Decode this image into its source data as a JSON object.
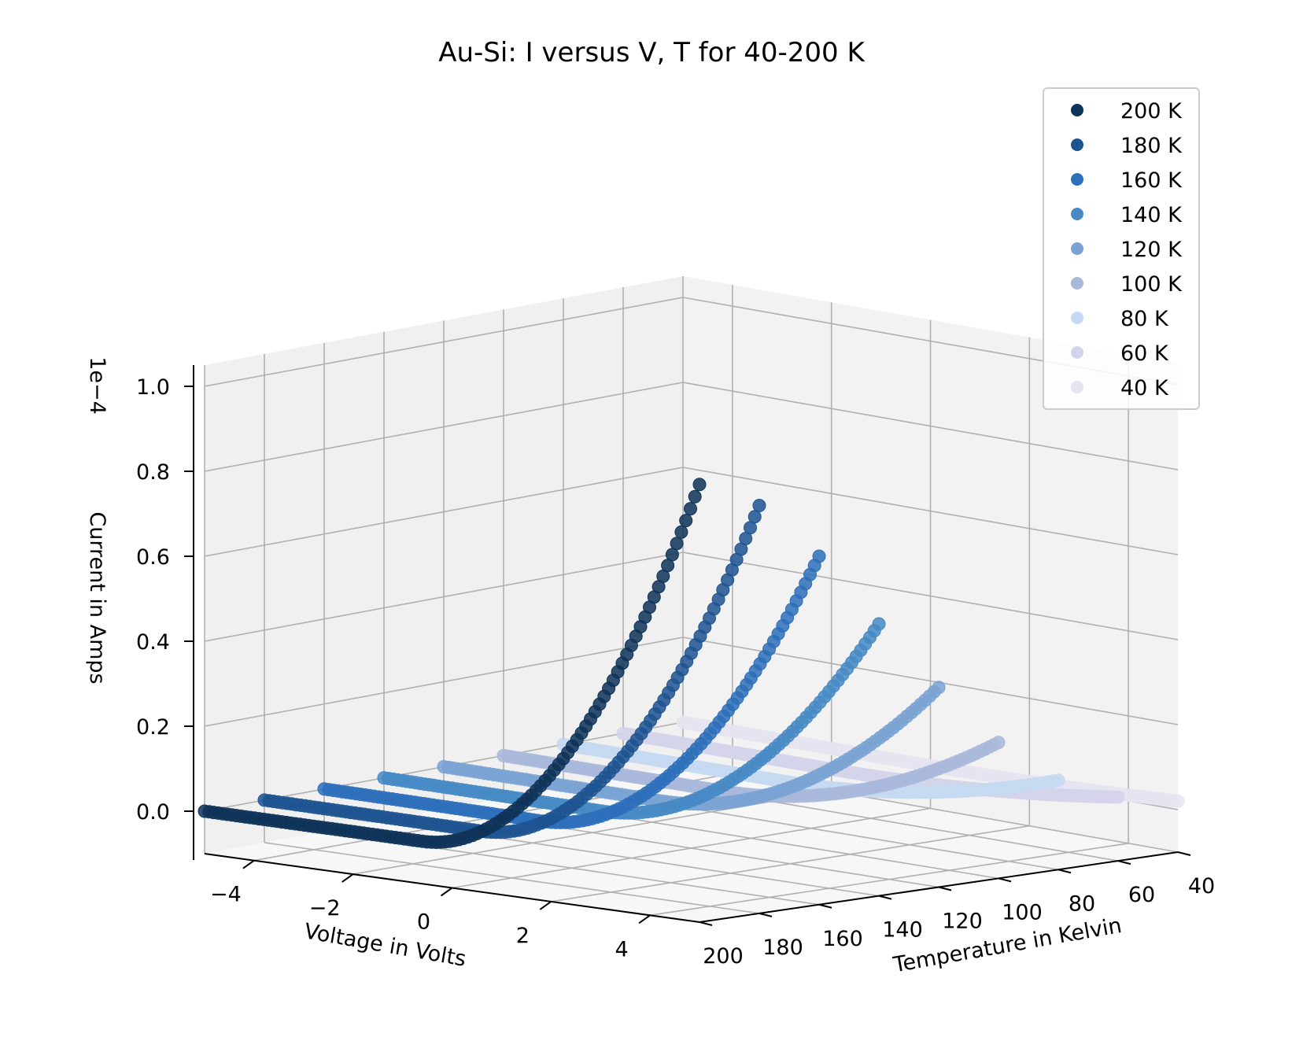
{
  "chart_data": {
    "type": "scatter",
    "projection": "3d",
    "title": "Au-Si: I versus V, T for 40-200 K",
    "xlabel": "Voltage in Volts",
    "ylabel": "Temperature in Kelvin",
    "zlabel": "Current in Amps",
    "z_offset_text": "1e−4",
    "xlim": [
      -5,
      5
    ],
    "ylim": [
      200,
      40
    ],
    "zlim": [
      -0.1,
      1.05
    ],
    "x_ticks": [
      -4,
      -2,
      0,
      2,
      4
    ],
    "x_tick_labels": [
      "−4",
      "−2",
      "0",
      "2",
      "4"
    ],
    "y_ticks": [
      200,
      180,
      160,
      140,
      120,
      100,
      80,
      60,
      40
    ],
    "y_tick_labels": [
      "200",
      "180",
      "160",
      "140",
      "120",
      "100",
      "80",
      "60",
      "40"
    ],
    "z_ticks": [
      0.0,
      0.2,
      0.4,
      0.6,
      0.8,
      1.0
    ],
    "z_tick_labels": [
      "0.0",
      "0.2",
      "0.4",
      "0.6",
      "0.8",
      "1.0"
    ],
    "grid": true,
    "legend_position": "top-right",
    "voltage_range": [
      -5,
      5
    ],
    "curve_model": "I = I_end * ((V + 0.6) / 5.6)^2 for V > -0.6, else 0",
    "series": [
      {
        "name": "200 K",
        "temperature": 200,
        "color": "#0e3358",
        "max_current": 0.93
      },
      {
        "name": "180 K",
        "temperature": 180,
        "color": "#1d5490",
        "max_current": 0.86
      },
      {
        "name": "160 K",
        "temperature": 160,
        "color": "#2d6fba",
        "max_current": 0.72
      },
      {
        "name": "140 K",
        "temperature": 140,
        "color": "#4689c4",
        "max_current": 0.54
      },
      {
        "name": "120 K",
        "temperature": 120,
        "color": "#7aa3d3",
        "max_current": 0.37
      },
      {
        "name": "100 K",
        "temperature": 100,
        "color": "#a9b9db",
        "max_current": 0.22
      },
      {
        "name": "80 K",
        "temperature": 80,
        "color": "#c5d9f2",
        "max_current": 0.11
      },
      {
        "name": "60 K",
        "temperature": 60,
        "color": "#d3d3ea",
        "max_current": 0.05
      },
      {
        "name": "40 K",
        "temperature": 40,
        "color": "#e6e4f1",
        "max_current": 0.02
      }
    ]
  }
}
